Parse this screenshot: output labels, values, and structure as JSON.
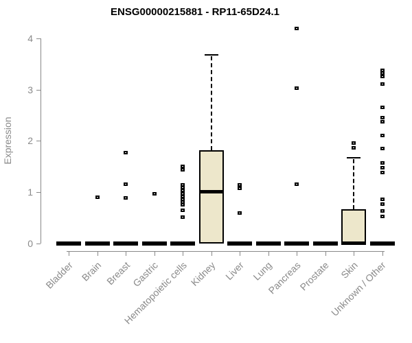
{
  "chart_data": {
    "type": "boxplot",
    "title": "ENSG00000215881 - RP11-65D24.1",
    "ylabel": "Expression",
    "xlabel": "",
    "ylim": [
      0,
      4.3
    ],
    "yticks": [
      0,
      1,
      2,
      3,
      4
    ],
    "grid": false,
    "legend": null,
    "categories": [
      "Bladder",
      "Brain",
      "Breast",
      "Gastric",
      "Hematopoietic cells",
      "Kidney",
      "Liver",
      "Lung",
      "Pancreas",
      "Prostate",
      "Skin",
      "Unknown / Other"
    ],
    "boxes": [
      {
        "category": "Bladder",
        "q1": 0,
        "median": 0,
        "q3": 0,
        "whisker_low": 0,
        "whisker_high": 0,
        "outliers": []
      },
      {
        "category": "Brain",
        "q1": 0,
        "median": 0,
        "q3": 0,
        "whisker_low": 0,
        "whisker_high": 0,
        "outliers": [
          0.9
        ]
      },
      {
        "category": "Breast",
        "q1": 0,
        "median": 0,
        "q3": 0,
        "whisker_low": 0,
        "whisker_high": 0,
        "outliers": [
          1.77,
          1.15,
          0.88
        ]
      },
      {
        "category": "Gastric",
        "q1": 0,
        "median": 0,
        "q3": 0,
        "whisker_low": 0,
        "whisker_high": 0,
        "outliers": [
          0.96
        ]
      },
      {
        "category": "Hematopoietic cells",
        "q1": 0,
        "median": 0,
        "q3": 0,
        "whisker_low": 0,
        "whisker_high": 0,
        "outliers": [
          1.5,
          1.43,
          1.14,
          1.08,
          1.03,
          0.96,
          0.91,
          0.86,
          0.8,
          0.75,
          0.64,
          0.51
        ]
      },
      {
        "category": "Kidney",
        "q1": 0,
        "median": 1.0,
        "q3": 1.82,
        "whisker_low": 0,
        "whisker_high": 3.68,
        "outliers": []
      },
      {
        "category": "Liver",
        "q1": 0,
        "median": 0,
        "q3": 0,
        "whisker_low": 0,
        "whisker_high": 0,
        "outliers": [
          1.14,
          1.07,
          0.59
        ]
      },
      {
        "category": "Lung",
        "q1": 0,
        "median": 0,
        "q3": 0,
        "whisker_low": 0,
        "whisker_high": 0,
        "outliers": []
      },
      {
        "category": "Pancreas",
        "q1": 0,
        "median": 0,
        "q3": 0,
        "whisker_low": 0,
        "whisker_high": 0,
        "outliers": [
          4.18,
          3.02,
          1.15
        ]
      },
      {
        "category": "Prostate",
        "q1": 0,
        "median": 0,
        "q3": 0,
        "whisker_low": 0,
        "whisker_high": 0,
        "outliers": []
      },
      {
        "category": "Skin",
        "q1": 0,
        "median": 0,
        "q3": 0.67,
        "whisker_low": 0,
        "whisker_high": 1.67,
        "outliers": [
          1.95,
          1.86
        ]
      },
      {
        "category": "Unknown / Other",
        "q1": 0,
        "median": 0,
        "q3": 0,
        "whisker_low": 0,
        "whisker_high": 0,
        "outliers": [
          3.37,
          3.31,
          3.25,
          3.1,
          2.65,
          2.45,
          2.37,
          2.1,
          1.84,
          1.57,
          1.47,
          1.38,
          0.86,
          0.76,
          0.63,
          0.52
        ]
      }
    ],
    "colors": {
      "box_fill": "#EDE7CB",
      "box_border": "#000000",
      "median": "#000000",
      "outlier": "#000000",
      "axis": "#888888",
      "tick_label": "#8A8A8A",
      "title": "#000000",
      "background": "#FFFFFF"
    }
  }
}
